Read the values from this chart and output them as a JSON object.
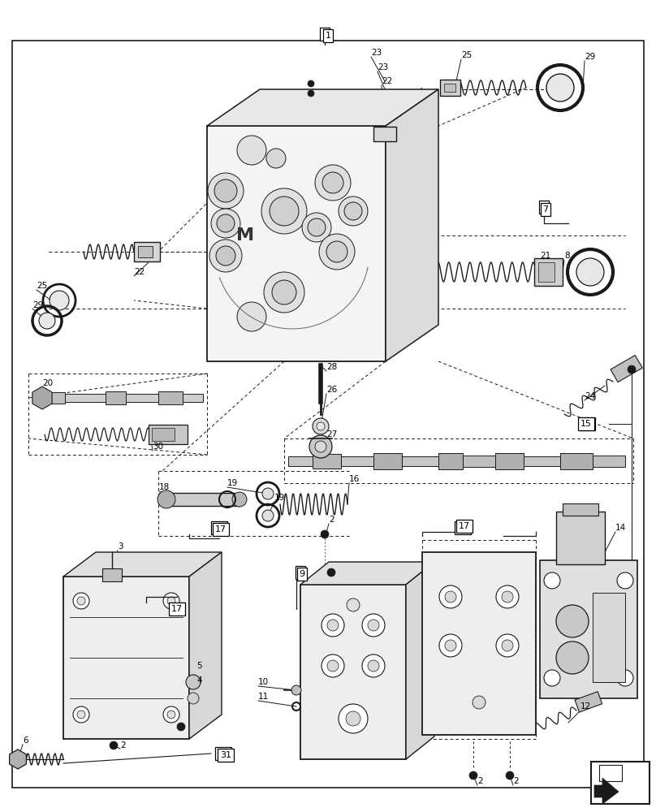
{
  "bg_color": "#ffffff",
  "line_color": "#1a1a1a",
  "fig_w": 8.08,
  "fig_h": 10.0,
  "dpi": 100
}
